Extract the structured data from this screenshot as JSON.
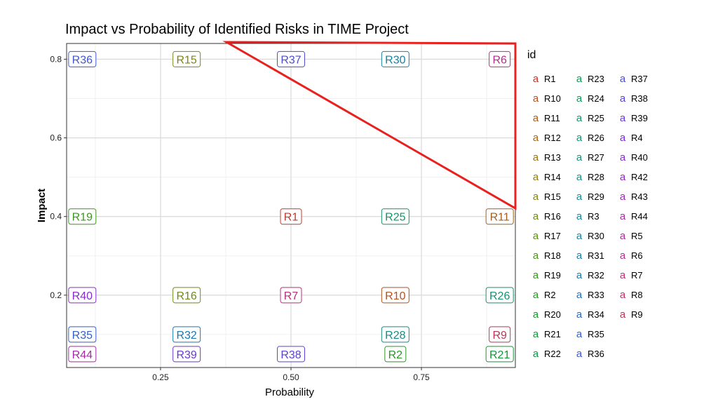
{
  "chart_data": {
    "type": "scatter",
    "title": "Impact vs Probability of Identified Risks in TIME Project",
    "xlabel": "Probability",
    "ylabel": "Impact",
    "xlim": [
      0.07,
      0.93
    ],
    "ylim": [
      0.016,
      0.84
    ],
    "xticks": [
      0.25,
      0.5,
      0.75
    ],
    "xtick_labels": [
      "0.25",
      "0.50",
      "0.75"
    ],
    "yticks": [
      0.2,
      0.4,
      0.6,
      0.8
    ],
    "ytick_labels": [
      "0.2",
      "0.4",
      "0.6",
      "0.8"
    ],
    "grid": true,
    "legend": {
      "title": "id",
      "placement": "right",
      "key_glyph": "a"
    },
    "points": [
      {
        "id": "R36",
        "x": 0.1,
        "y": 0.8
      },
      {
        "id": "R15",
        "x": 0.3,
        "y": 0.8
      },
      {
        "id": "R37",
        "x": 0.5,
        "y": 0.8
      },
      {
        "id": "R30",
        "x": 0.7,
        "y": 0.8
      },
      {
        "id": "R6",
        "x": 0.9,
        "y": 0.8
      },
      {
        "id": "R19",
        "x": 0.1,
        "y": 0.4
      },
      {
        "id": "R1",
        "x": 0.5,
        "y": 0.4
      },
      {
        "id": "R25",
        "x": 0.7,
        "y": 0.4
      },
      {
        "id": "R11",
        "x": 0.9,
        "y": 0.4
      },
      {
        "id": "R40",
        "x": 0.1,
        "y": 0.2
      },
      {
        "id": "R16",
        "x": 0.3,
        "y": 0.2
      },
      {
        "id": "R7",
        "x": 0.5,
        "y": 0.2
      },
      {
        "id": "R10",
        "x": 0.7,
        "y": 0.2
      },
      {
        "id": "R26",
        "x": 0.9,
        "y": 0.2
      },
      {
        "id": "R35",
        "x": 0.1,
        "y": 0.1
      },
      {
        "id": "R32",
        "x": 0.3,
        "y": 0.1
      },
      {
        "id": "R28",
        "x": 0.7,
        "y": 0.1
      },
      {
        "id": "R9",
        "x": 0.9,
        "y": 0.1
      },
      {
        "id": "R44",
        "x": 0.1,
        "y": 0.05
      },
      {
        "id": "R39",
        "x": 0.3,
        "y": 0.05
      },
      {
        "id": "R38",
        "x": 0.5,
        "y": 0.05
      },
      {
        "id": "R2",
        "x": 0.7,
        "y": 0.05
      },
      {
        "id": "R21",
        "x": 0.9,
        "y": 0.05
      }
    ],
    "legend_entries": [
      {
        "id": "R1",
        "color": "#C0392B"
      },
      {
        "id": "R10",
        "color": "#B5501F"
      },
      {
        "id": "R11",
        "color": "#A65D1A"
      },
      {
        "id": "R12",
        "color": "#A06A16"
      },
      {
        "id": "R13",
        "color": "#987513"
      },
      {
        "id": "R14",
        "color": "#8E7D10"
      },
      {
        "id": "R15",
        "color": "#7F8410"
      },
      {
        "id": "R16",
        "color": "#6F8A12"
      },
      {
        "id": "R17",
        "color": "#5E8F15"
      },
      {
        "id": "R18",
        "color": "#4C9219"
      },
      {
        "id": "R19",
        "color": "#3A951E"
      },
      {
        "id": "R2",
        "color": "#2A9725"
      },
      {
        "id": "R20",
        "color": "#1B982E"
      },
      {
        "id": "R21",
        "color": "#129838"
      },
      {
        "id": "R22",
        "color": "#0E9843"
      },
      {
        "id": "R23",
        "color": "#0E974F"
      },
      {
        "id": "R24",
        "color": "#10965B"
      },
      {
        "id": "R25",
        "color": "#139466"
      },
      {
        "id": "R26",
        "color": "#159271"
      },
      {
        "id": "R27",
        "color": "#16907B"
      },
      {
        "id": "R28",
        "color": "#168D85"
      },
      {
        "id": "R29",
        "color": "#168A8F"
      },
      {
        "id": "R3",
        "color": "#158698"
      },
      {
        "id": "R30",
        "color": "#1582A1"
      },
      {
        "id": "R31",
        "color": "#167DAA"
      },
      {
        "id": "R32",
        "color": "#1977B3"
      },
      {
        "id": "R33",
        "color": "#1F70BB"
      },
      {
        "id": "R34",
        "color": "#2868C3"
      },
      {
        "id": "R35",
        "color": "#335FCA"
      },
      {
        "id": "R36",
        "color": "#3F55D0"
      },
      {
        "id": "R37",
        "color": "#4C4BD4"
      },
      {
        "id": "R38",
        "color": "#5A41D6"
      },
      {
        "id": "R39",
        "color": "#6938D5"
      },
      {
        "id": "R4",
        "color": "#7731D2"
      },
      {
        "id": "R40",
        "color": "#852CCB"
      },
      {
        "id": "R42",
        "color": "#9229C2"
      },
      {
        "id": "R43",
        "color": "#9D28B6"
      },
      {
        "id": "R44",
        "color": "#A728A8"
      },
      {
        "id": "R5",
        "color": "#AF2999"
      },
      {
        "id": "R6",
        "color": "#B52C89"
      },
      {
        "id": "R7",
        "color": "#B92F78"
      },
      {
        "id": "R8",
        "color": "#BB3267"
      },
      {
        "id": "R9",
        "color": "#BB3556"
      }
    ],
    "annotation": {
      "shape": "triangle",
      "color": "#E8201E"
    }
  }
}
